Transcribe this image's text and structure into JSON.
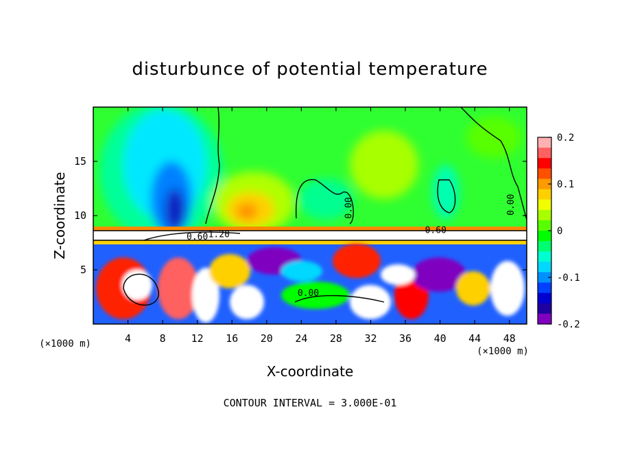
{
  "chart_data": {
    "type": "heatmap",
    "title": "disturbunce of potential temperature",
    "xlabel": "X-coordinate",
    "ylabel": "Z-coordinate",
    "x_unit": "(×1000 m)",
    "xlim": [
      0,
      50
    ],
    "ylim": [
      0,
      20
    ],
    "x_ticks": [
      4,
      8,
      12,
      16,
      20,
      24,
      28,
      32,
      36,
      40,
      44,
      48
    ],
    "y_ticks": [
      5,
      10,
      15
    ],
    "colorbar": {
      "range": [
        -0.2,
        0.2
      ],
      "ticks": [
        "0.2",
        "0.1",
        "0",
        "-0.1",
        "-0.2"
      ],
      "colors": [
        "#ffb0b0",
        "#ff6060",
        "#ff0000",
        "#ff5000",
        "#ff9a00",
        "#ffd000",
        "#f0ff00",
        "#a8ff00",
        "#58ff00",
        "#00ff00",
        "#00ff70",
        "#00ffd0",
        "#00d8ff",
        "#0090ff",
        "#0040ff",
        "#0000d0",
        "#2000a0",
        "#8000c0"
      ]
    },
    "contour_labels": [
      "0.60",
      "0.60",
      "1.20",
      "0.00",
      "0.00",
      "0.00"
    ],
    "footer": "CONTOUR INTERVAL = 3.000E-01"
  }
}
